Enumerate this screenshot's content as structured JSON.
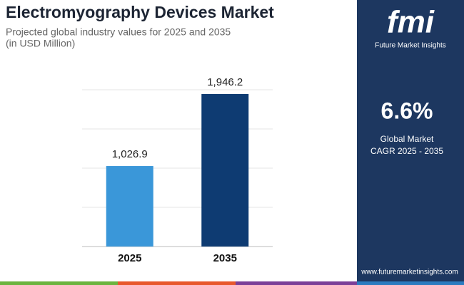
{
  "chart_data": {
    "type": "bar",
    "title": "Electromyography Devices Market",
    "subtitle": [
      "Projected global industry values for 2025 and 2035",
      "(in USD Million)"
    ],
    "categories": [
      "2025",
      "2035"
    ],
    "values": [
      1026.9,
      1946.2
    ],
    "value_labels": [
      "1,026.9",
      "1,946.2"
    ],
    "colors": [
      "#3a97d9",
      "#0e3b72"
    ],
    "ylim": [
      0,
      2000
    ],
    "yticks": [
      0,
      500,
      1000,
      1500,
      2000
    ],
    "grid": true
  },
  "brand": {
    "logo": "fmi",
    "name": "Future Market Insights",
    "url": "www.futuremarketinsights.com"
  },
  "highlight": {
    "value": "6.6%",
    "label": [
      "Global Market",
      "CAGR 2025 - 2035"
    ]
  }
}
